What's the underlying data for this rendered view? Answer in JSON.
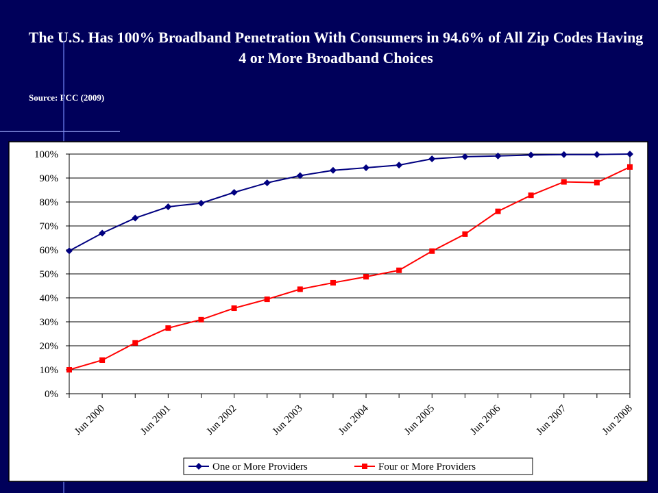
{
  "chart_data": {
    "type": "line",
    "title": "The U.S. Has 100% Broadband Penetration With Consumers in 94.6% of All Zip Codes Having 4 or More Broadband Choices",
    "subtitle": "Source: FCC (2009)",
    "categories": [
      null,
      "Jun 2000",
      null,
      "Jun 2001",
      null,
      "Jun 2002",
      null,
      "Jun 2003",
      null,
      "Jun 2004",
      null,
      "Jun 2005",
      null,
      "Jun 2006",
      null,
      "Jun 2007",
      null,
      "Jun 2008"
    ],
    "series": [
      {
        "name": "One or More Providers",
        "color": "#000080",
        "marker": "diamond",
        "values": [
          59.6,
          67.0,
          73.3,
          78.0,
          79.5,
          84.0,
          88.0,
          91.0,
          93.2,
          94.3,
          95.4,
          98.0,
          98.9,
          99.2,
          99.6,
          99.8,
          99.8,
          100.0
        ]
      },
      {
        "name": "Four or More Providers",
        "color": "#ff0000",
        "marker": "square",
        "values": [
          10.0,
          14.0,
          21.2,
          27.4,
          30.9,
          35.7,
          39.4,
          43.6,
          46.3,
          48.8,
          51.5,
          59.5,
          66.6,
          76.1,
          82.8,
          88.4,
          88.1,
          94.6
        ]
      }
    ],
    "ylim": [
      0,
      100
    ],
    "yticks": [
      {
        "value": 0,
        "label": "0%"
      },
      {
        "value": 10,
        "label": "10%"
      },
      {
        "value": 20,
        "label": "20%"
      },
      {
        "value": 30,
        "label": "30%"
      },
      {
        "value": 40,
        "label": "40%"
      },
      {
        "value": 50,
        "label": "50%"
      },
      {
        "value": 60,
        "label": "60%"
      },
      {
        "value": 70,
        "label": "70%"
      },
      {
        "value": 80,
        "label": "80%"
      },
      {
        "value": 90,
        "label": "90%"
      },
      {
        "value": 100,
        "label": "100%"
      }
    ],
    "grid": true,
    "legend": "bottom"
  }
}
